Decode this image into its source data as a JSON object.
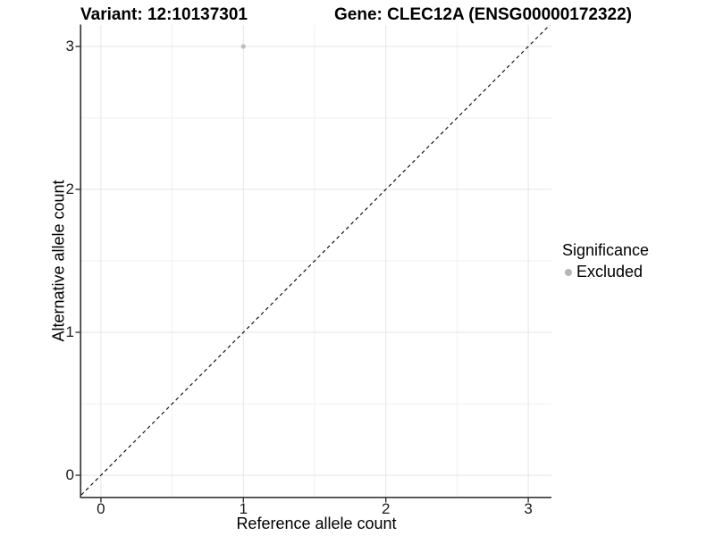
{
  "titles": {
    "variant": "Variant: 12:10137301",
    "gene": "Gene: CLEC12A (ENSG00000172322)"
  },
  "chart_data": {
    "type": "scatter",
    "xlabel": "Reference allele count",
    "ylabel": "Alternative allele count",
    "xlim": [
      -0.1375,
      3.1625
    ],
    "ylim": [
      -0.15,
      3.15
    ],
    "x_ticks": [
      0,
      1,
      2,
      3
    ],
    "x_minor_ticks": [
      0.5,
      1.5,
      2.5
    ],
    "y_ticks": [
      0,
      1,
      2,
      3
    ],
    "y_minor_ticks": [
      0.5,
      1.5,
      2.5
    ],
    "grid": "major and minor, light gray on white",
    "points": [
      {
        "x": 1,
        "y": 3,
        "series": "Excluded"
      }
    ],
    "identity_line": {
      "slope": 1,
      "intercept": 0,
      "style": "dashed"
    },
    "legend": {
      "title": "Significance",
      "position": "right",
      "entries": [
        {
          "label": "Excluded",
          "color": "#b5b5b5",
          "marker": "circle"
        }
      ]
    }
  },
  "colors": {
    "background": "#ffffff",
    "grid_major": "#e4e4e4",
    "grid_minor": "#f1f1f1",
    "axis_line": "#383838",
    "tick_mark": "#333333",
    "point": "#bdbdbd",
    "identity_line": "#000000",
    "text": "#000000"
  }
}
